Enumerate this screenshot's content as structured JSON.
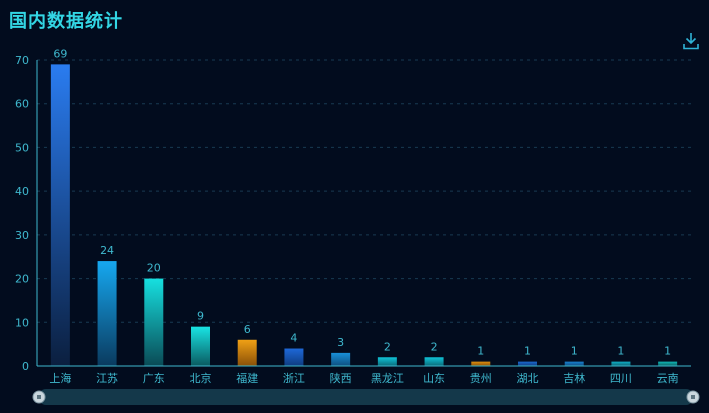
{
  "header": {
    "title": "国内数据统计"
  },
  "toolbar": {
    "download_icon": "download-icon"
  },
  "chart_data": {
    "type": "bar",
    "title": "国内数据统计",
    "categories": [
      "上海",
      "江苏",
      "广东",
      "北京",
      "福建",
      "浙江",
      "陕西",
      "黑龙江",
      "山东",
      "贵州",
      "湖北",
      "吉林",
      "四川",
      "云南"
    ],
    "values": [
      69,
      24,
      20,
      9,
      6,
      4,
      3,
      2,
      2,
      1,
      1,
      1,
      1,
      1
    ],
    "ylim": [
      0,
      70
    ],
    "yticks": [
      0,
      10,
      20,
      30,
      40,
      50,
      60,
      70
    ],
    "grid": true,
    "legend": "none",
    "bar_colors": [
      [
        "#2a7cf0",
        "#0b1f3f"
      ],
      [
        "#16a8f0",
        "#0a3a5e"
      ],
      [
        "#16e0e0",
        "#0a4a55"
      ],
      [
        "#19e4e4",
        "#0a5a60"
      ],
      [
        "#f0a015",
        "#8a5008"
      ],
      [
        "#1e68d8",
        "#0f3c80"
      ],
      [
        "#1890d8",
        "#0f5080"
      ],
      [
        "#10c4d8",
        "#0a6a78"
      ],
      [
        "#10c4d8",
        "#0a6a78"
      ],
      [
        "#e0900f",
        "#8a5008"
      ],
      [
        "#1a6ad0",
        "#0f3c80"
      ],
      [
        "#1880d0",
        "#0f4c80"
      ],
      [
        "#10b0c8",
        "#0a6070"
      ],
      [
        "#10b8b8",
        "#0a6060"
      ]
    ]
  },
  "zoom": {
    "start_handle": "zoom-start-handle",
    "end_handle": "zoom-end-handle"
  },
  "colors": {
    "axis": "#3fb9cf",
    "grid": "#183a52",
    "title": "#33d6e4",
    "slider": "#14384a"
  }
}
